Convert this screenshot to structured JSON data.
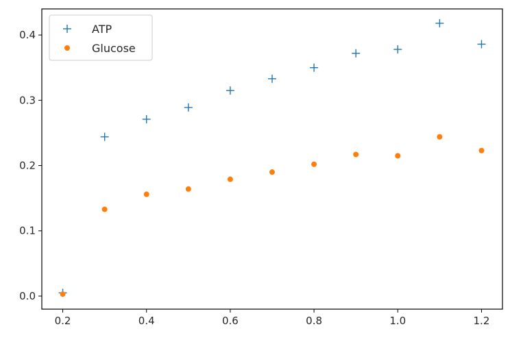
{
  "chart_data": {
    "type": "scatter",
    "title": "",
    "xlabel": "",
    "ylabel": "",
    "xlim": [
      0.15,
      1.25
    ],
    "ylim": [
      -0.02,
      0.44
    ],
    "x_ticks": [
      "0.2",
      "0.4",
      "0.6",
      "0.8",
      "1.0",
      "1.2"
    ],
    "y_ticks": [
      "0.0",
      "0.1",
      "0.2",
      "0.3",
      "0.4"
    ],
    "x_tick_values": [
      0.2,
      0.4,
      0.6,
      0.8,
      1.0,
      1.2
    ],
    "y_tick_values": [
      0.0,
      0.1,
      0.2,
      0.3,
      0.4
    ],
    "grid": false,
    "legend_position": "top-left",
    "series": [
      {
        "name": "ATP",
        "marker": "plus",
        "color": "#1f77b4",
        "x": [
          0.2,
          0.3,
          0.4,
          0.5,
          0.6,
          0.7,
          0.8,
          0.9,
          1.0,
          1.1,
          1.2
        ],
        "y": [
          0.005,
          0.244,
          0.271,
          0.289,
          0.315,
          0.333,
          0.35,
          0.372,
          0.378,
          0.418,
          0.386
        ]
      },
      {
        "name": "Glucose",
        "marker": "circle",
        "color": "#ff7f0e",
        "x": [
          0.2,
          0.3,
          0.4,
          0.5,
          0.6,
          0.7,
          0.8,
          0.9,
          1.0,
          1.1,
          1.2
        ],
        "y": [
          0.003,
          0.133,
          0.156,
          0.164,
          0.179,
          0.19,
          0.202,
          0.217,
          0.215,
          0.244,
          0.223
        ]
      }
    ]
  }
}
